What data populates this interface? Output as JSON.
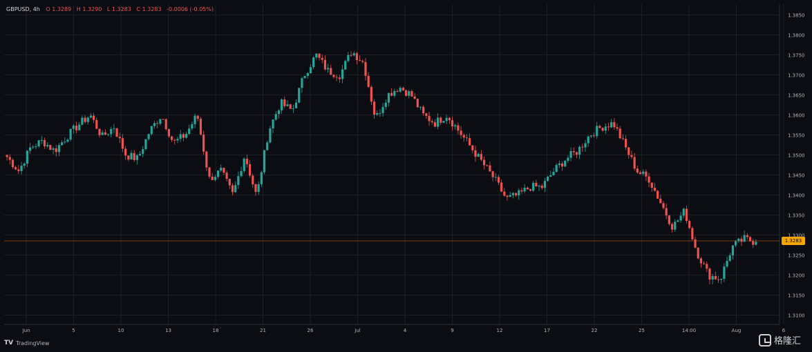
{
  "legend": {
    "symbol": "GBPUSD, 4h",
    "open": "O 1.3289",
    "high": "H 1.3290",
    "low": "L 1.3283",
    "close": "C 1.3283",
    "change": "-0.0006 (-0.05%)"
  },
  "brand": {
    "logo_text": "TradingView",
    "watermark": "格隆汇"
  },
  "colors": {
    "background": "#0b0d12",
    "up": "#26a69a",
    "down": "#ef5350",
    "grid": "#1c1f26",
    "price_line": "#7a3a10",
    "price_tag": "#f7a600"
  },
  "chart_data": {
    "type": "candlestick",
    "symbol": "GBPUSD",
    "interval": "4h",
    "last_price": "1.3283",
    "ylim": [
      1.308,
      1.387
    ],
    "y_ticks": [
      "1.3850",
      "1.3800",
      "1.3750",
      "1.3700",
      "1.3650",
      "1.3600",
      "1.3550",
      "1.3500",
      "1.3450",
      "1.3400",
      "1.3350",
      "1.3300",
      "1.3250",
      "1.3200",
      "1.3150",
      "1.3100"
    ],
    "x_ticks": [
      "Jun",
      "5",
      "10",
      "13",
      "18",
      "21",
      "26",
      "Jul",
      "4",
      "9",
      "12",
      "17",
      "22",
      "25",
      "14:00",
      "Aug",
      "6"
    ],
    "close_path": [
      1.3495,
      1.346,
      1.352,
      1.3535,
      1.351,
      1.3545,
      1.3575,
      1.36,
      1.3545,
      1.357,
      1.35,
      1.349,
      1.356,
      1.36,
      1.353,
      1.355,
      1.36,
      1.344,
      1.346,
      1.34,
      1.35,
      1.3395,
      1.356,
      1.363,
      1.361,
      1.37,
      1.375,
      1.371,
      1.37,
      1.376,
      1.373,
      1.359,
      1.365,
      1.367,
      1.365,
      1.36,
      1.358,
      1.36,
      1.356,
      1.352,
      1.348,
      1.344,
      1.339,
      1.34,
      1.342,
      1.342,
      1.346,
      1.349,
      1.351,
      1.355,
      1.357,
      1.358,
      1.352,
      1.346,
      1.344,
      1.338,
      1.332,
      1.336,
      1.326,
      1.32,
      1.319,
      1.327,
      1.329,
      1.3283
    ]
  }
}
